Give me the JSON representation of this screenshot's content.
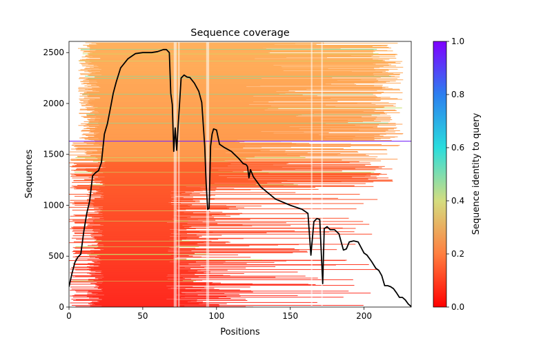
{
  "chart_data": {
    "type": "heatmap",
    "title": "Sequence coverage",
    "xlabel": "Positions",
    "ylabel": "Sequences",
    "xlim": [
      0,
      232
    ],
    "ylim": [
      0,
      2610
    ],
    "xticks": [
      0,
      50,
      100,
      150,
      200
    ],
    "yticks": [
      0,
      500,
      1000,
      1500,
      2000,
      2500
    ],
    "grid": false,
    "colorbar": {
      "label": "Sequence identity to query",
      "colormap": "rainbow_r",
      "range": [
        0.0,
        1.0
      ],
      "ticks": [
        "0.0",
        "0.2",
        "0.4",
        "0.6",
        "0.8",
        "1.0"
      ]
    },
    "query_line": {
      "y": 1630,
      "color": "#7b2ff7"
    },
    "coverage_line": {
      "color": "#000000",
      "x": [
        0,
        2,
        4,
        6,
        8,
        10,
        12,
        14,
        16,
        18,
        20,
        22,
        24,
        26,
        28,
        30,
        32,
        35,
        40,
        45,
        50,
        56,
        60,
        62,
        64,
        66,
        68,
        69,
        70,
        71,
        72,
        73,
        74,
        76,
        78,
        80,
        82,
        85,
        88,
        90,
        92,
        93,
        94,
        95,
        96,
        97,
        98,
        100,
        102,
        105,
        110,
        115,
        118,
        120,
        121,
        122,
        123,
        125,
        130,
        140,
        150,
        158,
        162,
        164,
        166,
        168,
        170,
        172,
        173,
        175,
        177,
        180,
        183,
        186,
        188,
        190,
        193,
        196,
        200,
        202,
        205,
        208,
        210,
        212,
        214,
        216,
        218,
        220,
        222,
        224,
        226,
        228,
        230,
        232
      ],
      "y": [
        200,
        330,
        440,
        490,
        520,
        740,
        920,
        1040,
        1290,
        1320,
        1340,
        1420,
        1700,
        1800,
        1950,
        2100,
        2210,
        2350,
        2440,
        2490,
        2500,
        2500,
        2510,
        2520,
        2530,
        2530,
        2500,
        2100,
        1990,
        1530,
        1760,
        1540,
        1780,
        2250,
        2280,
        2260,
        2255,
        2200,
        2120,
        2010,
        1580,
        1210,
        960,
        970,
        1580,
        1700,
        1750,
        1740,
        1600,
        1570,
        1530,
        1460,
        1410,
        1400,
        1380,
        1270,
        1350,
        1280,
        1180,
        1060,
        1000,
        960,
        920,
        510,
        840,
        870,
        860,
        230,
        770,
        790,
        760,
        760,
        720,
        560,
        570,
        640,
        650,
        640,
        530,
        510,
        450,
        380,
        360,
        310,
        210,
        210,
        200,
        180,
        140,
        95,
        95,
        70,
        30,
        5
      ]
    }
  }
}
